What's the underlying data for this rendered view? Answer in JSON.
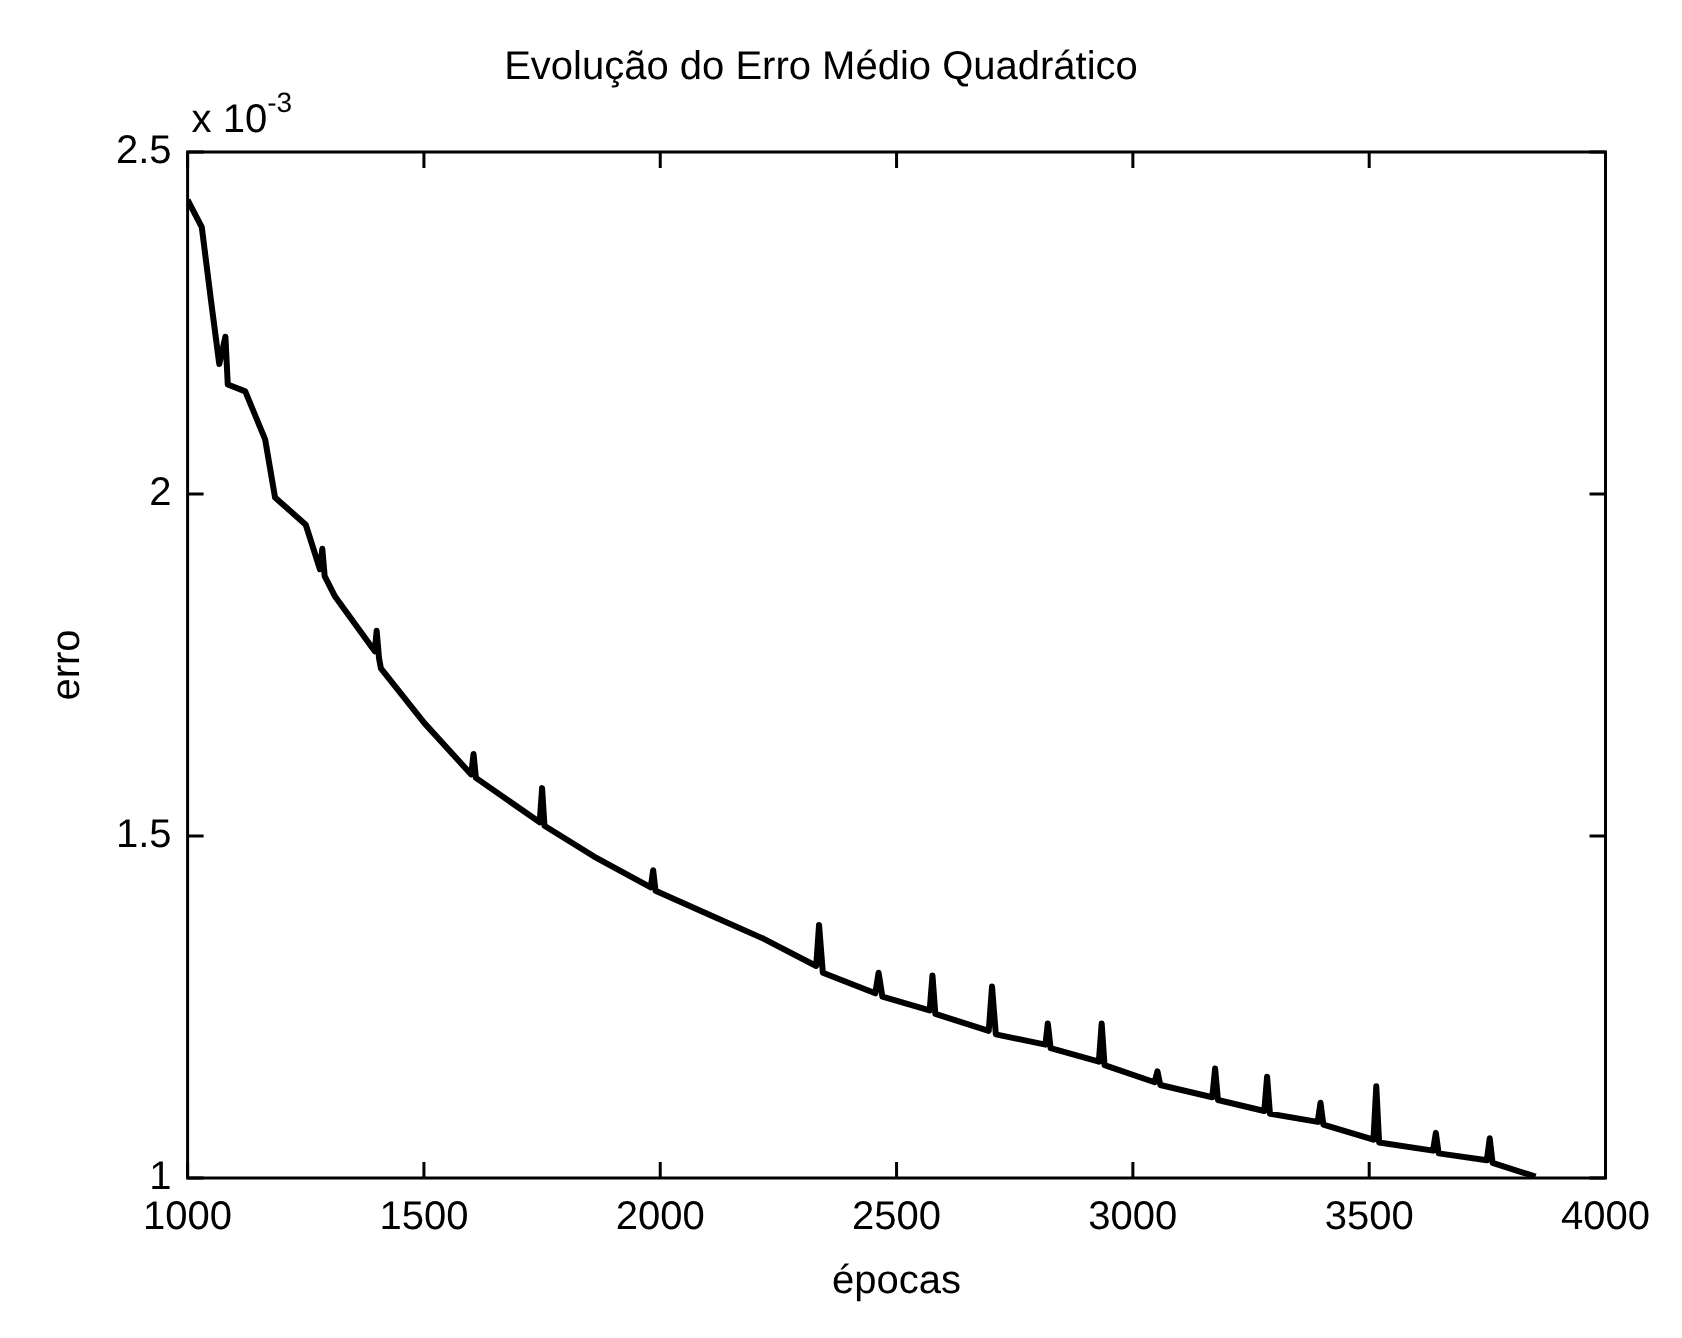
{
  "chart_data": {
    "type": "line",
    "title": "Evolução do Erro Médio Quadrático",
    "xlabel": "épocas",
    "ylabel": "erro",
    "annotations": [
      "x 10$^{-3}$"
    ],
    "x": [
      1000,
      1030,
      1050,
      1067,
      1080,
      1085,
      1122,
      1164,
      1185,
      1250,
      1280,
      1285,
      1290,
      1312,
      1396,
      1400,
      1405,
      1409,
      1501,
      1600,
      1605,
      1610,
      1745,
      1750,
      1755,
      1860,
      1980,
      1985,
      1990,
      2104,
      2218,
      2330,
      2336,
      2344,
      2455,
      2462,
      2470,
      2570,
      2576,
      2582,
      2695,
      2702,
      2710,
      2815,
      2820,
      2826,
      2928,
      2934,
      2940,
      3046,
      3052,
      3058,
      3168,
      3174,
      3180,
      3278,
      3284,
      3290,
      3391,
      3397,
      3403,
      3509,
      3515,
      3521,
      3635,
      3641,
      3647,
      3749,
      3755,
      3761,
      3852
    ],
    "series": [
      {
        "color": "#000000",
        "values": [
          2.43,
          2.39,
          2.28,
          2.19,
          2.23,
          2.16,
          2.15,
          2.08,
          1.995,
          1.955,
          1.89,
          1.92,
          1.88,
          1.85,
          1.77,
          1.8,
          1.76,
          1.745,
          1.665,
          1.59,
          1.62,
          1.585,
          1.52,
          1.57,
          1.515,
          1.47,
          1.425,
          1.45,
          1.42,
          1.385,
          1.35,
          1.31,
          1.37,
          1.3,
          1.27,
          1.3,
          1.265,
          1.245,
          1.296,
          1.24,
          1.215,
          1.28,
          1.21,
          1.195,
          1.226,
          1.19,
          1.17,
          1.226,
          1.165,
          1.14,
          1.156,
          1.136,
          1.118,
          1.16,
          1.114,
          1.098,
          1.148,
          1.094,
          1.082,
          1.11,
          1.078,
          1.056,
          1.134,
          1.052,
          1.04,
          1.066,
          1.036,
          1.026,
          1.058,
          1.022,
          1.002
        ]
      }
    ],
    "xlim": [
      1000,
      4000
    ],
    "xticks": [
      1000,
      1500,
      2000,
      2500,
      3000,
      3500,
      4000
    ],
    "ylim": [
      1,
      2.5
    ],
    "yticks": [
      1,
      1.5,
      2,
      2.5
    ],
    "grid": false,
    "legend": false,
    "marker": "none",
    "line_style": "solid"
  }
}
